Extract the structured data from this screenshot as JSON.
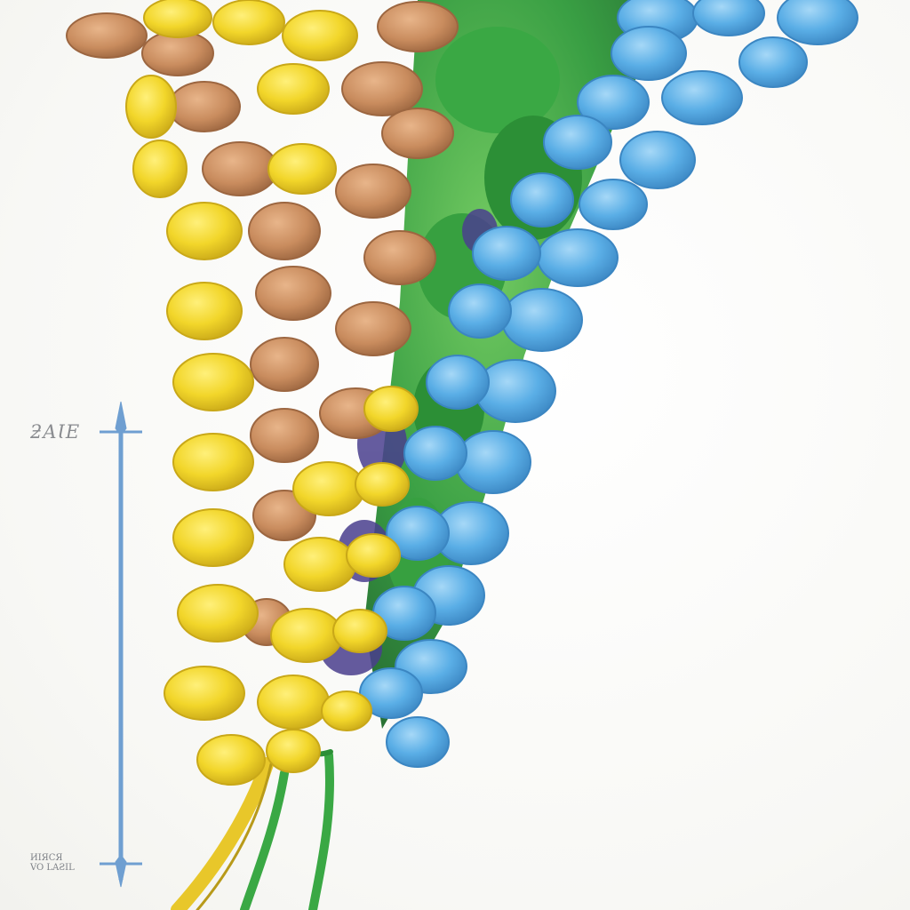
{
  "illustration": {
    "subject": "botanical-flower-spike",
    "colors": {
      "yellow": "#f2d62a",
      "tan": "#c98c5e",
      "green": "#2f9a3a",
      "blue": "#5aaee6",
      "purple": "#4a3f8e",
      "scale_blue": "#6f9fd1"
    }
  },
  "scale_bar": {
    "top_label": "ƻAƖE",
    "bottom_label_line1": "ИΙЯCЯ",
    "bottom_label_line2": "VO LAƧIL"
  }
}
